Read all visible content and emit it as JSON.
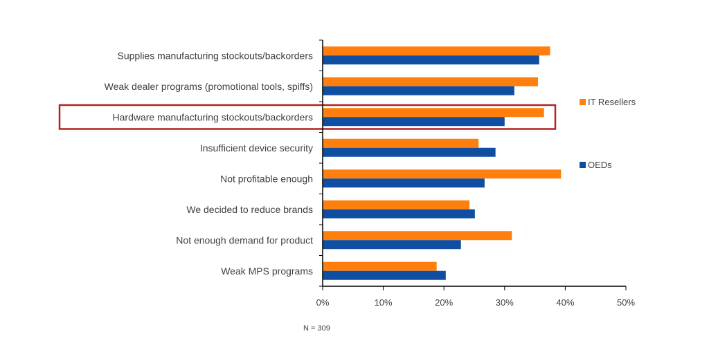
{
  "chart_data": {
    "type": "bar",
    "orientation": "horizontal",
    "categories": [
      "Supplies manufacturing stockouts/backorders",
      "Weak dealer programs (promotional tools, spiffs)",
      "Hardware manufacturing stockouts/backorders",
      "Insufficient device security",
      "Not profitable enough",
      "We decided to reduce brands",
      "Not enough demand for product",
      "Weak MPS programs"
    ],
    "series": [
      {
        "name": "IT Resellers",
        "color": "#ff7f0e",
        "values": [
          37.5,
          35.5,
          36.5,
          25.7,
          39.3,
          24.2,
          31.2,
          18.8
        ]
      },
      {
        "name": "OEDs",
        "color": "#0f4ea1",
        "values": [
          35.7,
          31.6,
          30.0,
          28.5,
          26.7,
          25.1,
          22.8,
          20.3
        ]
      }
    ],
    "xlim": [
      0,
      50
    ],
    "xticks": [
      "0%",
      "10%",
      "20%",
      "30%",
      "40%",
      "50%"
    ],
    "highlighted_category": "Hardware manufacturing stockouts/backorders",
    "highlight_color": "#b22222",
    "legend_position": "right",
    "note": "N = 309"
  }
}
